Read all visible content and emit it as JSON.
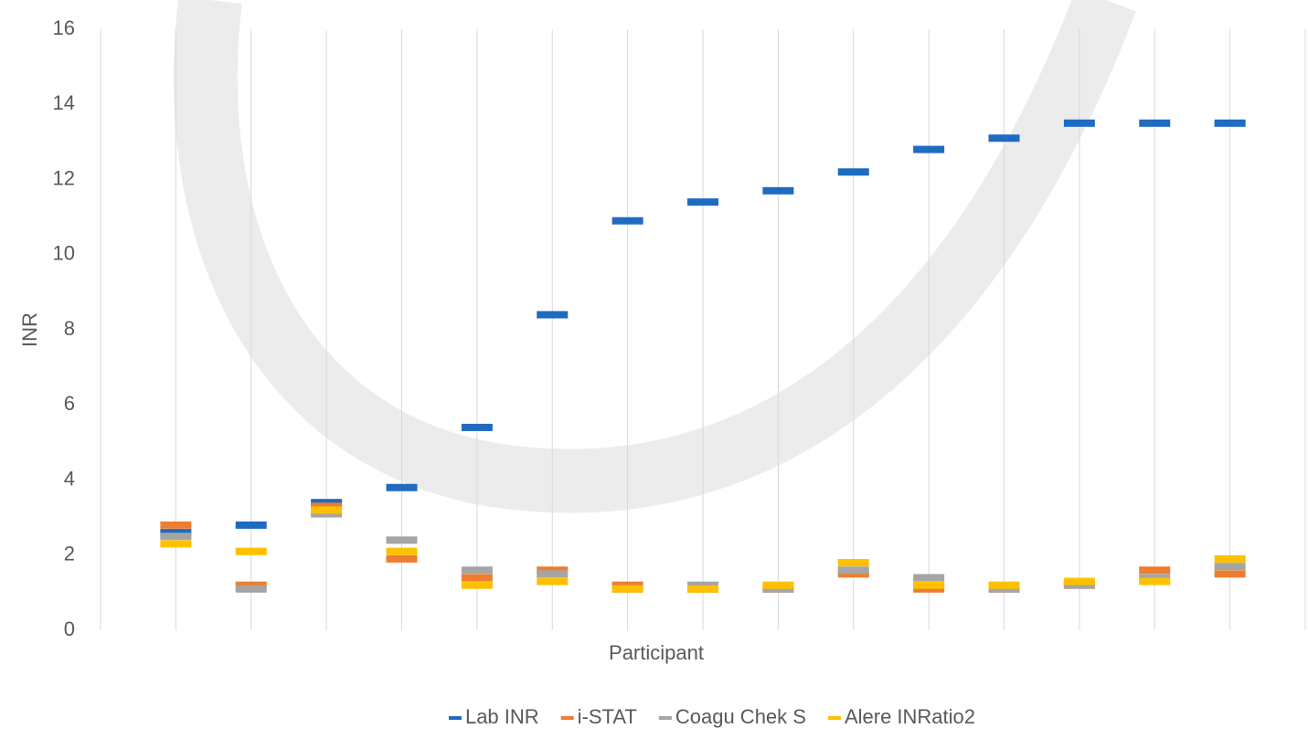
{
  "chart_data": {
    "type": "line",
    "marker": "dash",
    "x_label": "Participant",
    "y_label": "INR",
    "categories": [
      null,
      null,
      null,
      null,
      null,
      null,
      null,
      null,
      null,
      null,
      null,
      null,
      null,
      null,
      null
    ],
    "series": [
      {
        "name": "Lab INR",
        "color": "#1f6bc1",
        "values": [
          2.6,
          2.8,
          3.4,
          3.8,
          5.4,
          8.4,
          10.9,
          11.4,
          11.7,
          12.2,
          12.8,
          13.1,
          13.5,
          13.5,
          13.5
        ]
      },
      {
        "name": "i-STAT",
        "color": "#ed7d31",
        "values": [
          2.8,
          1.2,
          3.3,
          1.9,
          1.4,
          1.6,
          1.2,
          1.1,
          1.1,
          1.5,
          1.1,
          1.1,
          1.2,
          1.6,
          1.5
        ]
      },
      {
        "name": "Coagu Chek S",
        "color": "#a5a5a5",
        "values": [
          2.5,
          1.1,
          3.1,
          2.4,
          1.6,
          1.5,
          1.1,
          1.2,
          1.1,
          1.6,
          1.4,
          1.1,
          1.2,
          1.4,
          1.7
        ]
      },
      {
        "name": "Alere INRatio2",
        "color": "#ffc000",
        "values": [
          2.3,
          2.1,
          3.2,
          2.1,
          1.2,
          1.3,
          1.1,
          1.1,
          1.2,
          1.8,
          1.2,
          1.2,
          1.3,
          1.3,
          1.9
        ]
      }
    ],
    "ylim": [
      0,
      16
    ],
    "yticks": [
      0,
      2,
      4,
      6,
      8,
      10,
      12,
      14,
      16
    ],
    "grid": true,
    "legend": "bottom"
  }
}
